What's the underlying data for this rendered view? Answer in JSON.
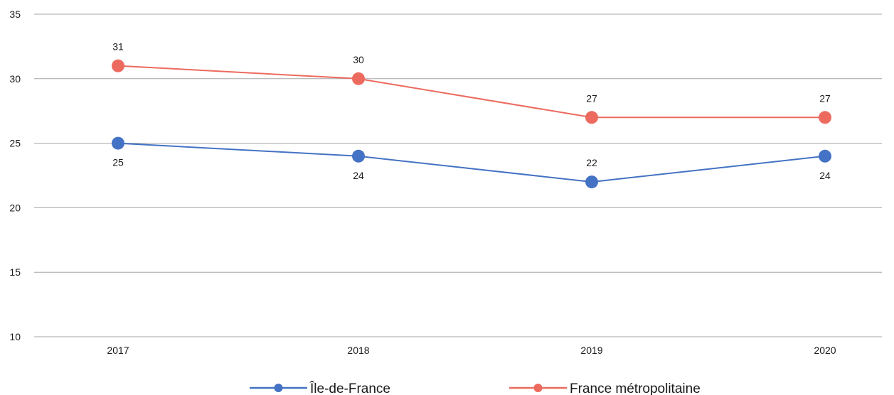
{
  "chart_data": {
    "type": "line",
    "title": "",
    "xlabel": "",
    "ylabel": "",
    "categories": [
      "2017",
      "2018",
      "2019",
      "2020"
    ],
    "ylim": [
      10,
      35
    ],
    "yticks": [
      10,
      15,
      20,
      25,
      30,
      35
    ],
    "grid": "horizontal",
    "legend": "bottom",
    "series": [
      {
        "name": "Île-de-France",
        "color": "#4472c4",
        "values": [
          25,
          24,
          22,
          24
        ],
        "labels": [
          "25",
          "24",
          "22",
          "24"
        ],
        "label_positions": [
          "below",
          "below",
          "above",
          "below"
        ]
      },
      {
        "name": "France métropolitaine",
        "color": "#ed6a5e",
        "values": [
          31,
          30,
          27,
          27
        ],
        "labels": [
          "31",
          "30",
          "27",
          "27"
        ],
        "label_positions": [
          "above",
          "above",
          "above",
          "above"
        ]
      }
    ]
  }
}
